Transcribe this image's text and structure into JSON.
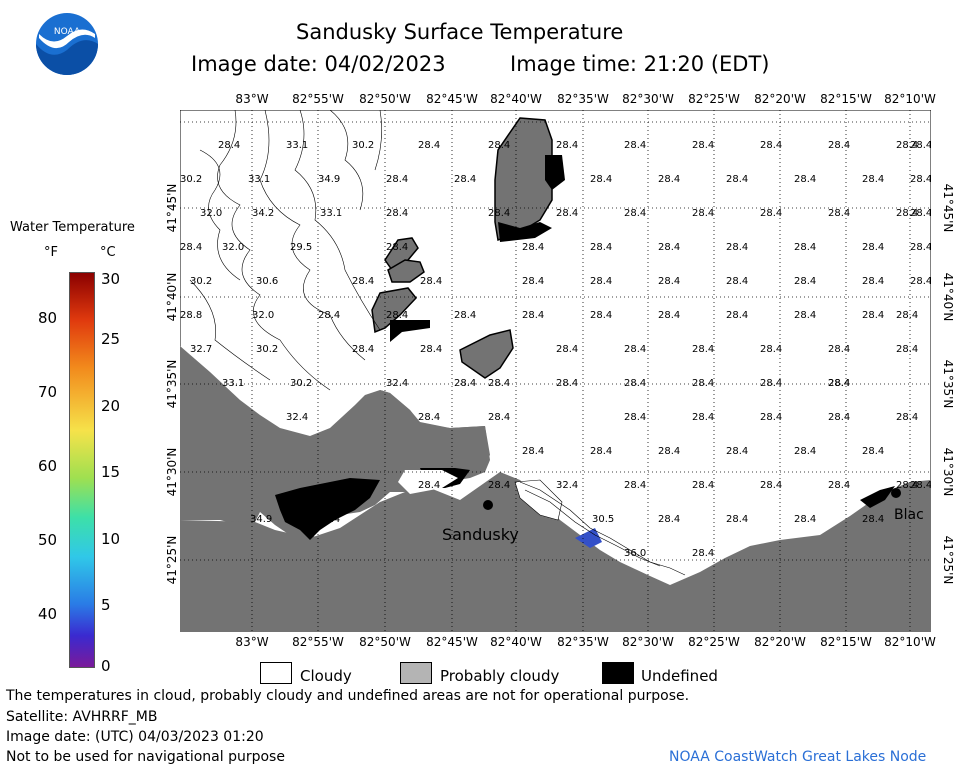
{
  "header": {
    "title": "Sandusky Surface Temperature",
    "image_date": "Image date: 04/02/2023",
    "image_time": "Image time: 21:20 (EDT)"
  },
  "logo": {
    "text": "NOAA"
  },
  "colorbar": {
    "title": "Water Temperature",
    "unit_f": "°F",
    "unit_c": "°C",
    "f_ticks": [
      "80",
      "70",
      "60",
      "50",
      "40"
    ],
    "c_ticks": [
      "30",
      "25",
      "20",
      "15",
      "10",
      "5",
      "0"
    ],
    "range_f": [
      32,
      86
    ],
    "range_c": [
      0,
      30
    ]
  },
  "axes": {
    "lon_labels": [
      "83°W",
      "82°55'W",
      "82°50'W",
      "82°45'W",
      "82°40'W",
      "82°35'W",
      "82°30'W",
      "82°25'W",
      "82°20'W",
      "82°15'W",
      "82°10'W"
    ],
    "lat_labels": [
      "41°45'N",
      "41°40'N",
      "41°35'N",
      "41°30'N",
      "41°25'N"
    ]
  },
  "places": {
    "sandusky": "Sandusky",
    "black": "Blac"
  },
  "temperatures": {
    "row1": [
      "28.4",
      "33.1",
      "30.2",
      "28.4",
      "28.4",
      "28.4",
      "28.4",
      "28.4",
      "28.4",
      "28.4",
      "28.4",
      "28.4"
    ],
    "row2": [
      "30.2",
      "33.1",
      "34.9",
      "28.4",
      "28.4",
      "28.4",
      "28.4",
      "28.4",
      "28.4",
      "28.4",
      "28.4"
    ],
    "row3": [
      "32.0",
      "34.2",
      "33.1",
      "28.4",
      "28.4",
      "28.4",
      "28.4",
      "28.4",
      "28.4",
      "28.4",
      "28.4",
      "28.4"
    ],
    "row4": [
      "28.4",
      "32.0",
      "29.5",
      "28.4",
      "28.4",
      "28.4",
      "28.4",
      "28.4",
      "28.4",
      "28.4",
      "28.4"
    ],
    "row5": [
      "30.2",
      "30.6",
      "28.4",
      "28.4",
      "28.4",
      "28.4",
      "28.4",
      "28.4",
      "28.4",
      "28.4",
      "28.4"
    ],
    "row6": [
      "28.8",
      "32.0",
      "28.4",
      "28.4",
      "28.4",
      "28.4",
      "28.4",
      "28.4",
      "28.4",
      "28.4",
      "28.4",
      "28.4"
    ],
    "row7": [
      "32.7",
      "30.2",
      "28.4",
      "28.4",
      "28.4",
      "28.4",
      "28.4",
      "28.4",
      "28.4",
      "28.4"
    ],
    "row8": [
      "33.1",
      "30.2",
      "32.4",
      "28.4",
      "28.4",
      "28.4",
      "28.4",
      "28.4",
      "28.4",
      "28.4",
      "28.4"
    ],
    "row9": [
      "32.4",
      "28.4",
      "28.4",
      "28.4",
      "28.4",
      "28.4",
      "28.4",
      "28.4"
    ],
    "row10": [
      "28.4",
      "28.4",
      "28.4",
      "28.4",
      "28.4",
      "28.4"
    ],
    "row11": [
      "28.4",
      "28.4",
      "28.4",
      "32.4",
      "28.4",
      "28.4",
      "28.4",
      "28.4",
      "28.4",
      "28.4"
    ],
    "row12": [
      "34.9",
      "28.4",
      "30.5",
      "28.4",
      "28.4",
      "28.4",
      "28.4"
    ],
    "row13": [
      "36.0",
      "28.4"
    ]
  },
  "legend": {
    "cloudy": "Cloudy",
    "probably_cloudy": "Probably cloudy",
    "undefined": "Undefined"
  },
  "footer": {
    "note": "The temperatures in cloud, probably cloudy and undefined areas are not for operational purpose.",
    "satellite": "Satellite: AVHRRF_MB",
    "utc_date": "Image date: (UTC) 04/03/2023  01:20",
    "nav_warning": "Not to be used for navigational purpose",
    "credit": "NOAA CoastWatch Great Lakes Node"
  },
  "colors": {
    "land": "#737373",
    "cloudy": "#ffffff",
    "probably_cloudy": "#b4b4b4",
    "undefined": "#000000",
    "water_28_4": "#5a3cc8",
    "credit": "#2a6fd6"
  }
}
